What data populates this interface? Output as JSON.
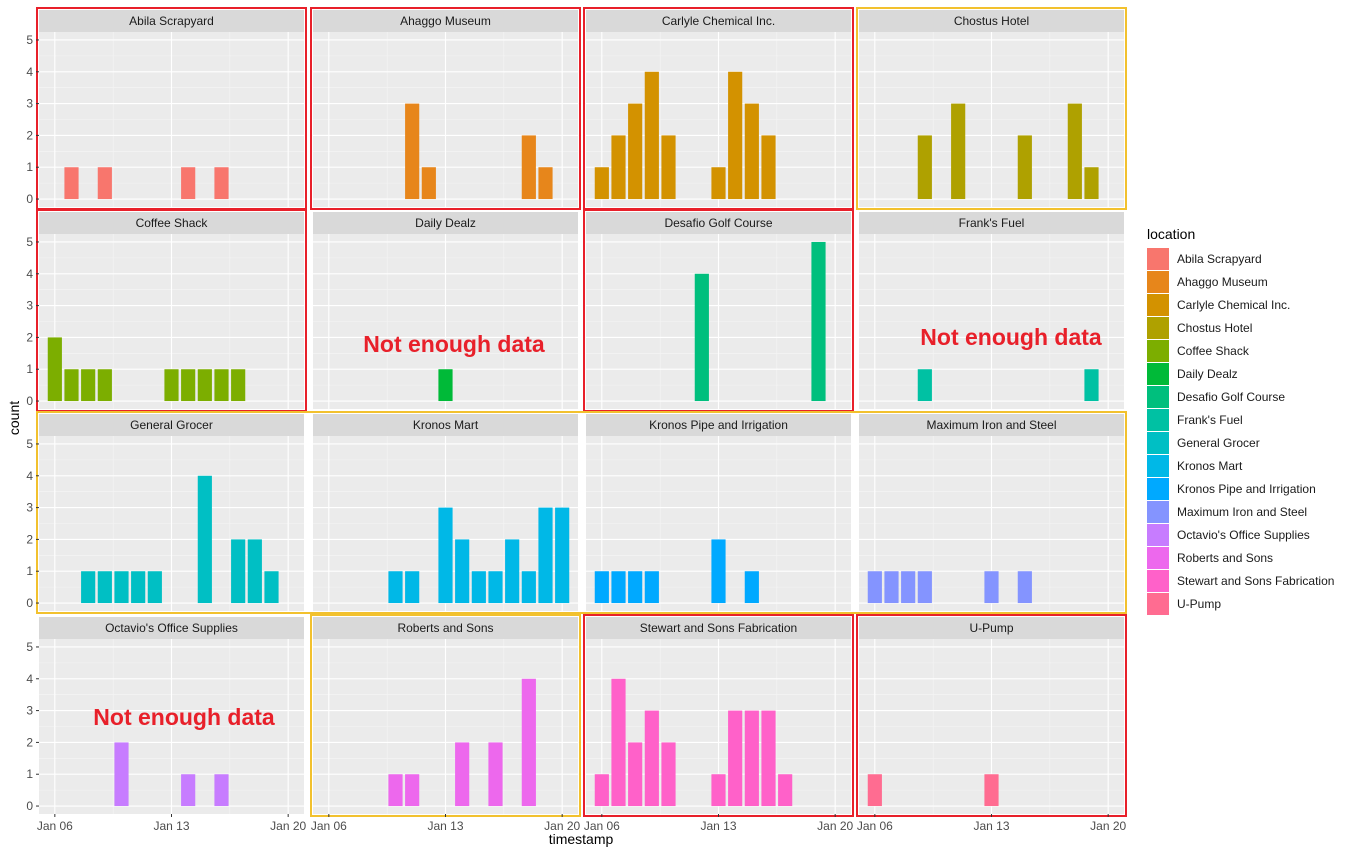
{
  "chart_data": {
    "type": "bar",
    "facet": "location",
    "xlabel": "timestamp",
    "ylabel": "count",
    "ylim": [
      0,
      5
    ],
    "y_ticks": [
      "0",
      "1",
      "2",
      "3",
      "4",
      "5"
    ],
    "x_ticks": [
      "Jan 06",
      "Jan 13",
      "Jan 20"
    ],
    "x_tick_days": [
      6,
      13,
      20
    ],
    "grid": true,
    "legend": {
      "title": "location",
      "position": "right",
      "entries": [
        {
          "name": "Abila Scrapyard",
          "color": "#F8766D"
        },
        {
          "name": "Ahaggo Museum",
          "color": "#E7861B"
        },
        {
          "name": "Carlyle Chemical Inc.",
          "color": "#D39200"
        },
        {
          "name": "Chostus Hotel",
          "color": "#AFA100"
        },
        {
          "name": "Coffee Shack",
          "color": "#7CAE00"
        },
        {
          "name": "Daily Dealz",
          "color": "#00BA38"
        },
        {
          "name": "Desafio Golf Course",
          "color": "#00BF7D"
        },
        {
          "name": "Frank's Fuel",
          "color": "#00C1A3"
        },
        {
          "name": "General Grocer",
          "color": "#00BFC4"
        },
        {
          "name": "Kronos Mart",
          "color": "#00B8E7"
        },
        {
          "name": "Kronos Pipe and Irrigation",
          "color": "#00A9FF"
        },
        {
          "name": "Maximum Iron and Steel",
          "color": "#8494FF"
        },
        {
          "name": "Octavio's Office Supplies",
          "color": "#C77CFF"
        },
        {
          "name": "Roberts and Sons",
          "color": "#ED68ED"
        },
        {
          "name": "Stewart and Sons Fabrication",
          "color": "#FF61C9"
        },
        {
          "name": "U-Pump",
          "color": "#FF6C91"
        }
      ]
    },
    "facets": [
      {
        "name": "Abila Scrapyard",
        "color": "#F8766D",
        "highlight": "red",
        "note": "",
        "bars": [
          {
            "day": 7,
            "count": 1
          },
          {
            "day": 9,
            "count": 1
          },
          {
            "day": 14,
            "count": 1
          },
          {
            "day": 16,
            "count": 1
          }
        ]
      },
      {
        "name": "Ahaggo Museum",
        "color": "#E7861B",
        "highlight": "red",
        "note": "",
        "bars": [
          {
            "day": 11,
            "count": 3
          },
          {
            "day": 12,
            "count": 1
          },
          {
            "day": 18,
            "count": 2
          },
          {
            "day": 19,
            "count": 1
          }
        ]
      },
      {
        "name": "Carlyle Chemical Inc.",
        "color": "#D39200",
        "highlight": "red",
        "note": "",
        "bars": [
          {
            "day": 6,
            "count": 1
          },
          {
            "day": 7,
            "count": 2
          },
          {
            "day": 8,
            "count": 3
          },
          {
            "day": 9,
            "count": 4
          },
          {
            "day": 10,
            "count": 2
          },
          {
            "day": 13,
            "count": 1
          },
          {
            "day": 14,
            "count": 4
          },
          {
            "day": 15,
            "count": 3
          },
          {
            "day": 16,
            "count": 2
          }
        ]
      },
      {
        "name": "Chostus Hotel",
        "color": "#AFA100",
        "highlight": "yellow",
        "note": "",
        "bars": [
          {
            "day": 9,
            "count": 2
          },
          {
            "day": 11,
            "count": 3
          },
          {
            "day": 15,
            "count": 2
          },
          {
            "day": 18,
            "count": 3
          },
          {
            "day": 19,
            "count": 1
          }
        ]
      },
      {
        "name": "Coffee Shack",
        "color": "#7CAE00",
        "highlight": "red",
        "note": "",
        "bars": [
          {
            "day": 6,
            "count": 2
          },
          {
            "day": 7,
            "count": 1
          },
          {
            "day": 8,
            "count": 1
          },
          {
            "day": 9,
            "count": 1
          },
          {
            "day": 13,
            "count": 1
          },
          {
            "day": 14,
            "count": 1
          },
          {
            "day": 15,
            "count": 1
          },
          {
            "day": 16,
            "count": 1
          },
          {
            "day": 17,
            "count": 1
          }
        ]
      },
      {
        "name": "Daily Dealz",
        "color": "#00BA38",
        "highlight": "",
        "note": "Not enough data",
        "bars": [
          {
            "day": 13,
            "count": 1
          }
        ]
      },
      {
        "name": "Desafio Golf Course",
        "color": "#00BF7D",
        "highlight": "red",
        "note": "",
        "bars": [
          {
            "day": 12,
            "count": 4
          },
          {
            "day": 19,
            "count": 5
          }
        ]
      },
      {
        "name": "Frank's Fuel",
        "color": "#00C1A3",
        "highlight": "",
        "note": "Not enough data",
        "bars": [
          {
            "day": 9,
            "count": 1
          },
          {
            "day": 19,
            "count": 1
          }
        ]
      },
      {
        "name": "General Grocer",
        "color": "#00BFC4",
        "highlight": "yellow-row",
        "note": "",
        "bars": [
          {
            "day": 8,
            "count": 1
          },
          {
            "day": 9,
            "count": 1
          },
          {
            "day": 10,
            "count": 1
          },
          {
            "day": 11,
            "count": 1
          },
          {
            "day": 12,
            "count": 1
          },
          {
            "day": 15,
            "count": 4
          },
          {
            "day": 17,
            "count": 2
          },
          {
            "day": 18,
            "count": 2
          },
          {
            "day": 19,
            "count": 1
          }
        ]
      },
      {
        "name": "Kronos Mart",
        "color": "#00B8E7",
        "highlight": "yellow-row",
        "note": "",
        "bars": [
          {
            "day": 10,
            "count": 1
          },
          {
            "day": 11,
            "count": 1
          },
          {
            "day": 13,
            "count": 3
          },
          {
            "day": 14,
            "count": 2
          },
          {
            "day": 15,
            "count": 1
          },
          {
            "day": 16,
            "count": 1
          },
          {
            "day": 17,
            "count": 2
          },
          {
            "day": 18,
            "count": 1
          },
          {
            "day": 19,
            "count": 3
          },
          {
            "day": 20,
            "count": 3
          }
        ]
      },
      {
        "name": "Kronos Pipe and Irrigation",
        "color": "#00A9FF",
        "highlight": "yellow-row",
        "note": "",
        "bars": [
          {
            "day": 6,
            "count": 1
          },
          {
            "day": 7,
            "count": 1
          },
          {
            "day": 8,
            "count": 1
          },
          {
            "day": 9,
            "count": 1
          },
          {
            "day": 13,
            "count": 2
          },
          {
            "day": 15,
            "count": 1
          }
        ]
      },
      {
        "name": "Maximum Iron and Steel",
        "color": "#8494FF",
        "highlight": "yellow-row",
        "note": "",
        "bars": [
          {
            "day": 6,
            "count": 1
          },
          {
            "day": 7,
            "count": 1
          },
          {
            "day": 8,
            "count": 1
          },
          {
            "day": 9,
            "count": 1
          },
          {
            "day": 13,
            "count": 1
          },
          {
            "day": 15,
            "count": 1
          }
        ]
      },
      {
        "name": "Octavio's Office Supplies",
        "color": "#C77CFF",
        "highlight": "",
        "note": "Not enough data",
        "bars": [
          {
            "day": 10,
            "count": 2
          },
          {
            "day": 14,
            "count": 1
          },
          {
            "day": 16,
            "count": 1
          }
        ]
      },
      {
        "name": "Roberts and Sons",
        "color": "#ED68ED",
        "highlight": "yellow",
        "note": "",
        "bars": [
          {
            "day": 10,
            "count": 1
          },
          {
            "day": 11,
            "count": 1
          },
          {
            "day": 14,
            "count": 2
          },
          {
            "day": 16,
            "count": 2
          },
          {
            "day": 18,
            "count": 4
          }
        ]
      },
      {
        "name": "Stewart and Sons Fabrication",
        "color": "#FF61C9",
        "highlight": "red",
        "note": "",
        "bars": [
          {
            "day": 6,
            "count": 1
          },
          {
            "day": 7,
            "count": 4
          },
          {
            "day": 8,
            "count": 2
          },
          {
            "day": 9,
            "count": 3
          },
          {
            "day": 10,
            "count": 2
          },
          {
            "day": 13,
            "count": 1
          },
          {
            "day": 14,
            "count": 3
          },
          {
            "day": 15,
            "count": 3
          },
          {
            "day": 16,
            "count": 3
          },
          {
            "day": 17,
            "count": 1
          }
        ]
      },
      {
        "name": "U-Pump",
        "color": "#FF6C91",
        "highlight": "red",
        "note": "",
        "bars": [
          {
            "day": 6,
            "count": 1
          },
          {
            "day": 13,
            "count": 1
          }
        ]
      }
    ]
  },
  "highlight_colors": {
    "red": "#e8202a",
    "yellow": "#f2c12e"
  }
}
